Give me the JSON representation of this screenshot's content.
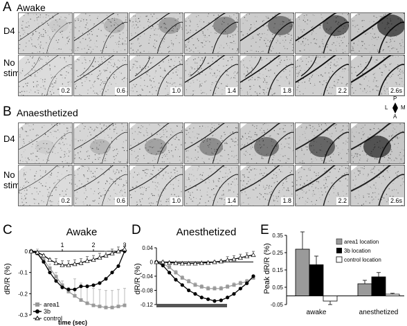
{
  "panels": {
    "a": {
      "letter": "A",
      "condition": "Awake"
    },
    "b": {
      "letter": "B",
      "condition": "Anaesthetized"
    },
    "c": {
      "letter": "C",
      "title": "Awake"
    },
    "d": {
      "letter": "D",
      "title": "Anesthetized"
    },
    "e": {
      "letter": "E"
    }
  },
  "row_labels": {
    "d4": "D4",
    "nostim_1": "No",
    "nostim_2": "stim"
  },
  "timestamps": [
    "0.2",
    "0.6",
    "1.0",
    "1.4",
    "1.8",
    "2.2",
    "2.6s"
  ],
  "orientation": {
    "p": "P",
    "l": "L",
    "m": "M",
    "a": "A"
  },
  "colors": {
    "area1": "#9a9a9a",
    "b3": "#000000",
    "control": "#ffffff"
  },
  "chart_data": [
    {
      "type": "line",
      "panel": "C",
      "title": "Awake",
      "xlabel": "time (sec)",
      "ylabel": "dR/R (%)",
      "x_tick_labels": [
        "1",
        "2",
        "3"
      ],
      "x": [
        0,
        0.2,
        0.4,
        0.6,
        0.8,
        1.0,
        1.2,
        1.4,
        1.6,
        1.8,
        2.0,
        2.2,
        2.4,
        2.6,
        2.8,
        3.0
      ],
      "ylim": [
        -0.3,
        0
      ],
      "y_ticks": [
        "0",
        "-0.1",
        "-0.2",
        "-0.3"
      ],
      "series": [
        {
          "name": "area1",
          "values": [
            0,
            -0.01,
            -0.04,
            -0.08,
            -0.12,
            -0.16,
            -0.19,
            -0.21,
            -0.23,
            -0.245,
            -0.255,
            -0.26,
            -0.265,
            -0.265,
            -0.26,
            -0.255
          ]
        },
        {
          "name": "3b",
          "values": [
            0,
            -0.01,
            -0.05,
            -0.1,
            -0.14,
            -0.17,
            -0.18,
            -0.18,
            -0.165,
            -0.165,
            -0.16,
            -0.15,
            -0.13,
            -0.1,
            -0.07,
            0
          ]
        },
        {
          "name": "control",
          "values": [
            0,
            -0.005,
            -0.02,
            -0.04,
            -0.055,
            -0.065,
            -0.065,
            -0.06,
            -0.055,
            -0.045,
            -0.04,
            -0.03,
            -0.02,
            -0.01,
            0,
            0.01
          ]
        }
      ]
    },
    {
      "type": "line",
      "panel": "D",
      "title": "Anesthetized",
      "ylabel": "dR/R (%)",
      "ylim": [
        -0.12,
        0.04
      ],
      "y_ticks": [
        "0.04",
        "0",
        "-0.04",
        "-0.08",
        "-0.12"
      ],
      "x": [
        0,
        0.2,
        0.4,
        0.6,
        0.8,
        1.0,
        1.2,
        1.4,
        1.6,
        1.8,
        2.0,
        2.2,
        2.4,
        2.6,
        2.8,
        3.0
      ],
      "series": [
        {
          "name": "area1",
          "values": [
            0,
            -0.005,
            -0.015,
            -0.03,
            -0.045,
            -0.055,
            -0.065,
            -0.07,
            -0.075,
            -0.075,
            -0.075,
            -0.07,
            -0.065,
            -0.06,
            -0.055,
            -0.045
          ]
        },
        {
          "name": "3b",
          "values": [
            0,
            -0.01,
            -0.03,
            -0.05,
            -0.065,
            -0.08,
            -0.09,
            -0.1,
            -0.105,
            -0.11,
            -0.108,
            -0.1,
            -0.09,
            -0.075,
            -0.06,
            -0.04
          ]
        },
        {
          "name": "control",
          "values": [
            0,
            0,
            -0.002,
            -0.003,
            -0.004,
            -0.004,
            -0.004,
            -0.003,
            -0.002,
            0,
            0.002,
            0.005,
            0.008,
            0.012,
            0.016,
            0.02
          ]
        }
      ]
    },
    {
      "type": "bar",
      "panel": "E",
      "ylabel": "Peak dR/R (%)",
      "categories": [
        "awake",
        "anesthetized"
      ],
      "ylim": [
        -0.05,
        0.35
      ],
      "y_ticks": [
        "0.35",
        "0.25",
        "0.15",
        "0.05",
        "-0.05"
      ],
      "legend_position": "top-right",
      "series": [
        {
          "name": "area1 location",
          "values": [
            0.27,
            0.07
          ],
          "errors": [
            0.1,
            0.02
          ]
        },
        {
          "name": "3b location",
          "values": [
            0.18,
            0.11
          ],
          "errors": [
            0.05,
            0.025
          ]
        },
        {
          "name": "control location",
          "values": [
            -0.03,
            0.01
          ],
          "errors": [
            0.02,
            0.005
          ]
        }
      ]
    }
  ]
}
